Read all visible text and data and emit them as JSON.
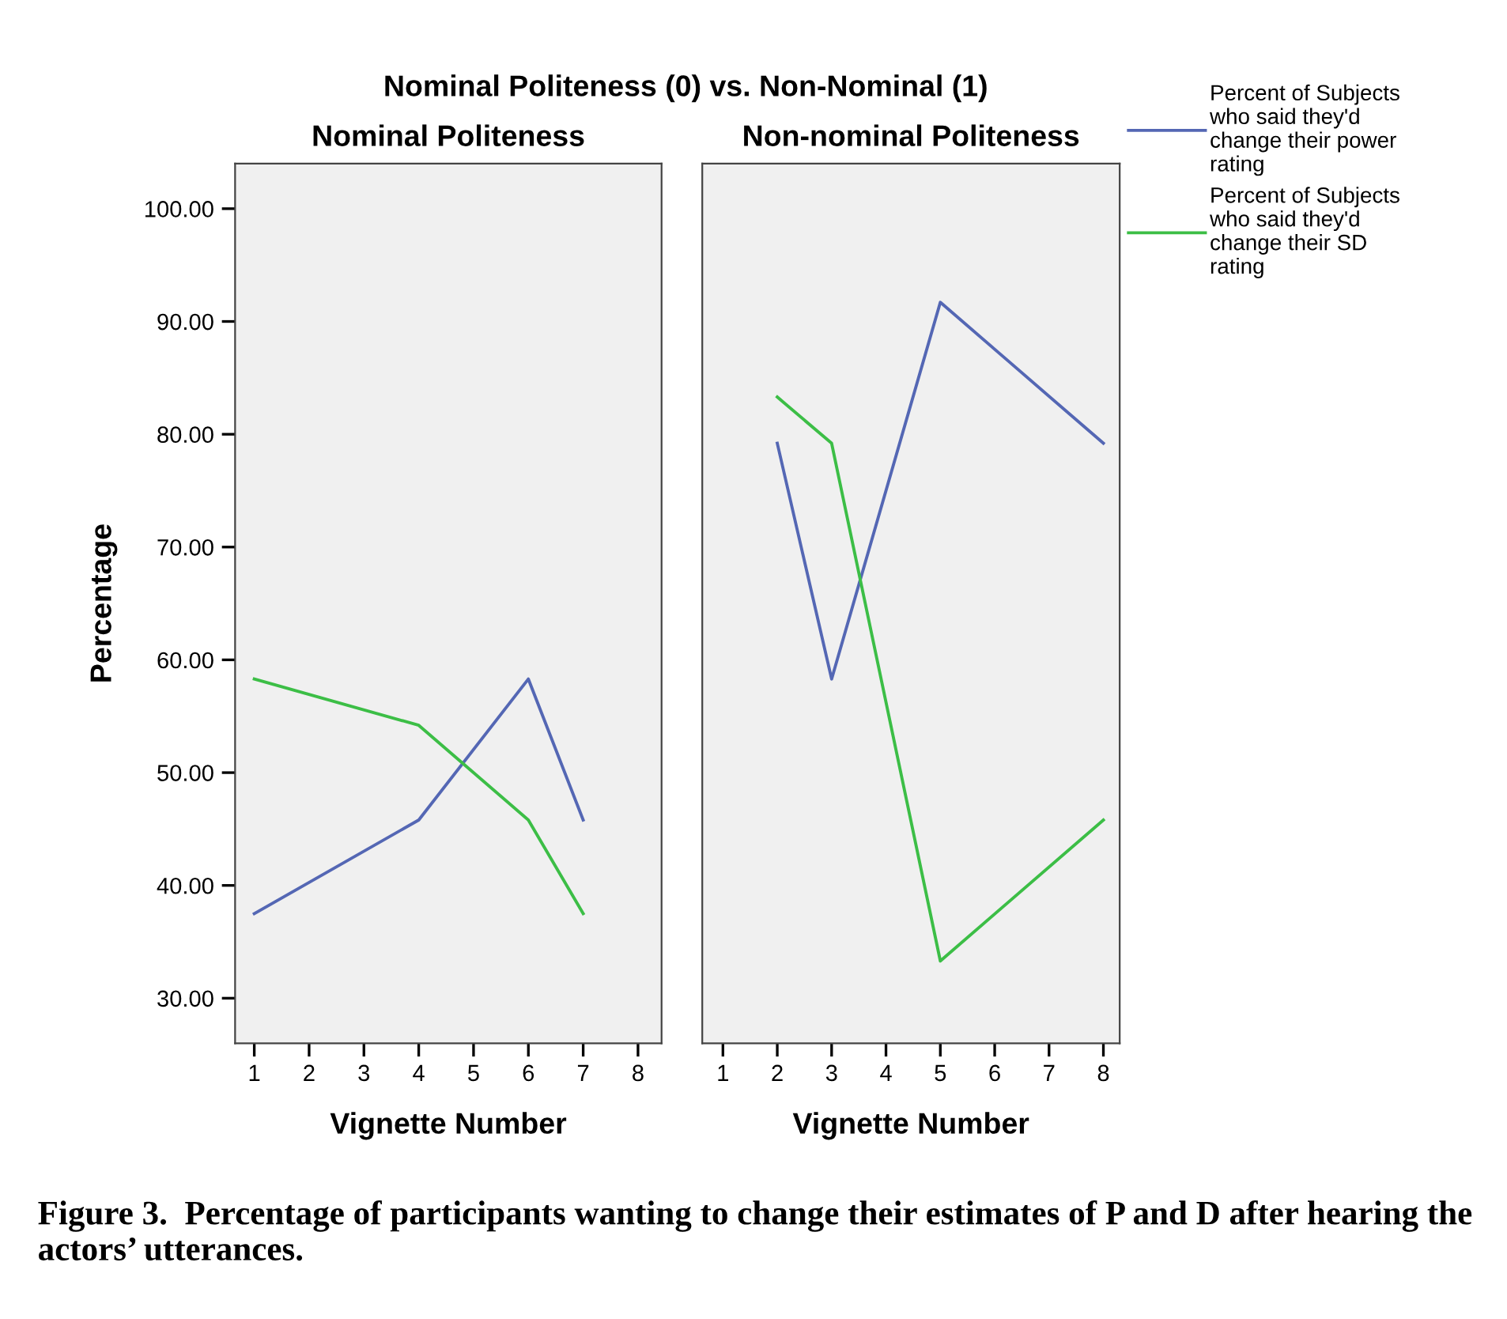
{
  "chart_data": [
    {
      "type": "line",
      "title": "Nominal Politeness",
      "xlabel": "Vignette Number",
      "ylabel": "Percentage",
      "annotations": [
        "Nominal Politeness (0) vs. Non-Nominal (1)",
        "Figure 3.  Percentage of participants wanting to change their estimates of P and D after hearing the actors’ utterances."
      ],
      "series": [
        {
          "color": "#5467b4",
          "x": [
            1,
            4,
            6,
            7
          ],
          "values": [
            37.5,
            45.8,
            58.3,
            45.8
          ]
        },
        {
          "color": "#3cbe46",
          "x": [
            1,
            4,
            6,
            7
          ],
          "values": [
            58.3,
            54.2,
            45.8,
            37.5
          ]
        }
      ],
      "xlim": [
        0.65,
        8.43
      ],
      "xticks": [
        1,
        2,
        3,
        4,
        5,
        6,
        7,
        8
      ],
      "ylim": [
        26,
        104
      ],
      "yticks": [
        {
          "value": 30,
          "label": "30.00"
        },
        {
          "value": 40,
          "label": "40.00"
        },
        {
          "value": 50,
          "label": "50.00"
        },
        {
          "value": 60,
          "label": "60.00"
        },
        {
          "value": 70,
          "label": "70.00"
        },
        {
          "value": 80,
          "label": "80.00"
        },
        {
          "value": 90,
          "label": "90.00"
        },
        {
          "value": 100,
          "label": "100.00"
        }
      ],
      "grid": false,
      "legend": false
    },
    {
      "type": "line",
      "title": "Non-nominal Politeness",
      "xlabel": "Vignette Number",
      "series": [
        {
          "name": "Percent of Subjects who said they'd change their power rating",
          "color": "#5467b4",
          "x": [
            2,
            3,
            5,
            8
          ],
          "values": [
            79.2,
            58.3,
            91.7,
            79.2
          ]
        },
        {
          "name": "Percent of Subjects who said they'd change their SD rating",
          "color": "#3cbe46",
          "x": [
            2,
            3,
            5,
            8
          ],
          "values": [
            83.3,
            79.2,
            33.3,
            45.8
          ]
        }
      ],
      "xlim": [
        0.62,
        8.3
      ],
      "xticks": [
        1,
        2,
        3,
        4,
        5,
        6,
        7,
        8
      ],
      "ylim": [
        26,
        104
      ],
      "tick_labels": "x",
      "grid": false,
      "legend": "right"
    }
  ]
}
